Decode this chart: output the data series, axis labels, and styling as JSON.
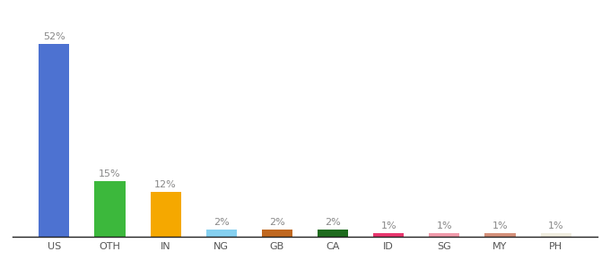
{
  "categories": [
    "US",
    "OTH",
    "IN",
    "NG",
    "GB",
    "CA",
    "ID",
    "SG",
    "MY",
    "PH"
  ],
  "values": [
    52,
    15,
    12,
    2,
    2,
    2,
    1,
    1,
    1,
    1
  ],
  "bar_colors": [
    "#4d72d1",
    "#3cb83c",
    "#f5a800",
    "#85d0f0",
    "#c06820",
    "#1e6b1e",
    "#e8366e",
    "#f09aaa",
    "#d4907a",
    "#f0ede0"
  ],
  "label_color": "#888888",
  "label_fontsize": 8,
  "tick_fontsize": 8,
  "background_color": "#ffffff",
  "ylim": [
    0,
    58
  ],
  "bar_width": 0.55
}
